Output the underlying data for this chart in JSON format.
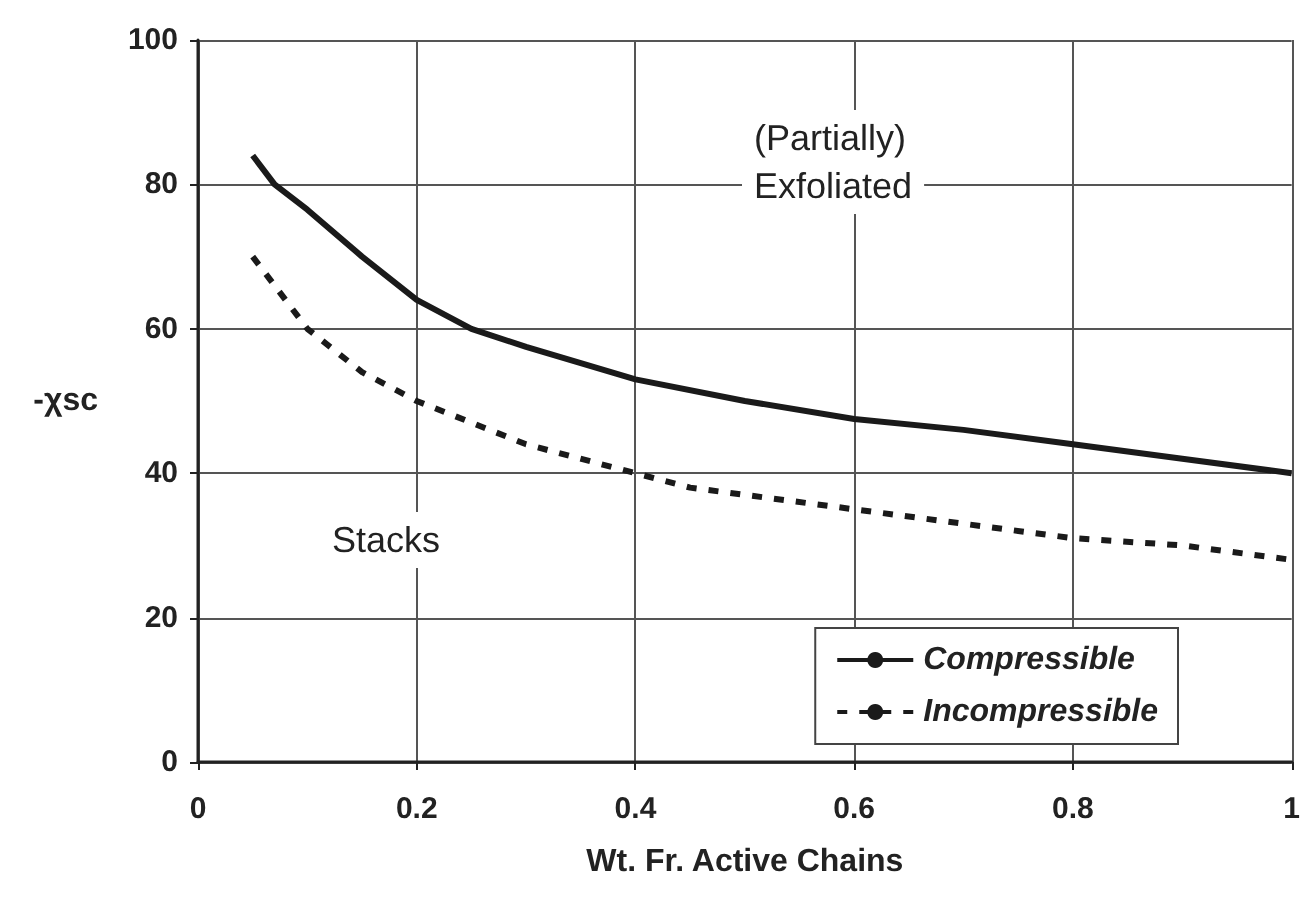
{
  "chart_data": {
    "type": "line",
    "xlabel": "Wt. Fr. Active Chains",
    "ylabel": "-χsc",
    "xlim": [
      0,
      1
    ],
    "xticks": [
      0,
      0.2,
      0.4,
      0.6,
      0.8,
      1
    ],
    "ylim": [
      0,
      100
    ],
    "yticks": [
      0,
      20,
      40,
      60,
      80,
      100
    ],
    "grid": true,
    "legend": "bottom right",
    "marker": "none",
    "annotations": [
      "(Partially)\nExfoliated",
      "Stacks"
    ],
    "series": [
      {
        "name": "Compressible",
        "color": "#1a1a1a",
        "line_style": "solid",
        "x": [
          0.05,
          0.07,
          0.1,
          0.15,
          0.2,
          0.25,
          0.3,
          0.4,
          0.5,
          0.6,
          0.7,
          0.8,
          0.9,
          1
        ],
        "values": [
          84,
          80,
          76.5,
          70,
          64,
          60,
          57.5,
          53,
          50,
          47.5,
          46,
          44,
          42,
          40
        ]
      },
      {
        "name": "Incompressible",
        "color": "#1a1a1a",
        "line_style": "dashed",
        "x": [
          0.05,
          0.08,
          0.1,
          0.15,
          0.2,
          0.25,
          0.3,
          0.4,
          0.45,
          0.5,
          0.6,
          0.7,
          0.8,
          0.9,
          1
        ],
        "values": [
          70,
          64,
          60,
          54,
          50,
          47,
          44,
          40,
          38,
          37,
          35,
          33,
          31,
          30,
          28
        ]
      }
    ]
  }
}
